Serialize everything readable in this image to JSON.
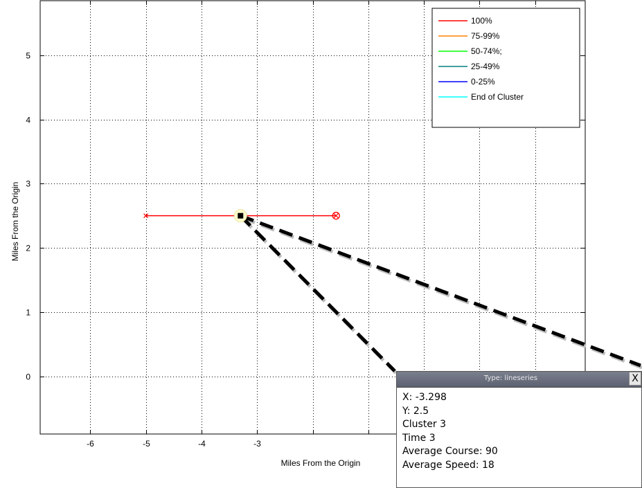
{
  "chart_data": {
    "type": "line",
    "xlabel": "Miles From the Origin",
    "ylabel": "Miles From the Origin",
    "xlim": [
      -6.9,
      2.9
    ],
    "ylim": [
      -0.9,
      5.85
    ],
    "xticks": [
      -6,
      -5,
      -4,
      -3,
      -2,
      -1,
      0,
      1,
      2
    ],
    "xtick_labels": [
      "-6",
      "-5",
      "-4",
      "-3",
      "",
      "",
      "",
      "",
      ""
    ],
    "yticks": [
      0,
      1,
      2,
      3,
      4,
      5
    ],
    "ytick_labels": [
      "0",
      "1",
      "2",
      "3",
      "4",
      "5"
    ],
    "grid": true,
    "series": [
      {
        "name": "100%",
        "color": "#ff0000",
        "x": [
          -5.0,
          -1.58
        ],
        "y": [
          2.5,
          2.5
        ],
        "start_marker": "x",
        "end_marker": "circle-x"
      }
    ],
    "selected_point": {
      "x": -3.298,
      "y": 2.5
    },
    "legend": {
      "position": "top-right",
      "entries": [
        {
          "label": "100%",
          "color": "#ff0000"
        },
        {
          "label": "75-99%",
          "color": "#ff8000"
        },
        {
          "label": "50-74%;",
          "color": "#00ff00"
        },
        {
          "label": "25-49%",
          "color": "#008080"
        },
        {
          "label": "0-25%",
          "color": "#0000ff"
        },
        {
          "label": "End of Cluster",
          "color": "#00ffff"
        }
      ]
    }
  },
  "datatip": {
    "title": "Type: lineseries",
    "close_label": "X",
    "lines": [
      "X: -3.298",
      "Y: 2.5",
      "Cluster 3",
      "Time 3",
      "Average Course: 90",
      "Average Speed: 18"
    ]
  }
}
